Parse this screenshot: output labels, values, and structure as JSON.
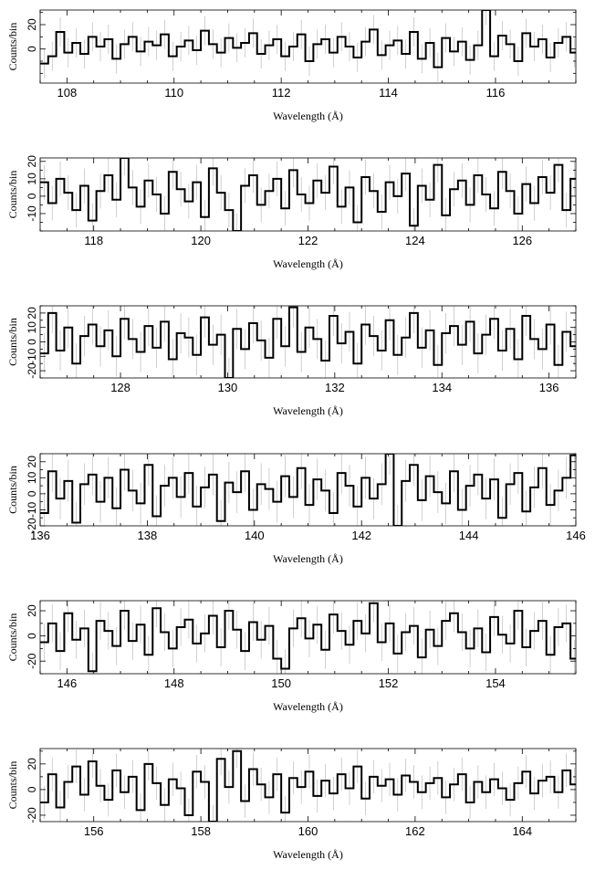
{
  "chart_data": [
    {
      "type": "line",
      "xlabel": "Wavelength (Å)",
      "ylabel": "Counts/bin",
      "xlim": [
        107.5,
        117.5
      ],
      "ylim": [
        -28,
        32
      ],
      "xticks": [
        108,
        110,
        112,
        114,
        116
      ],
      "yticks": [
        0,
        20
      ],
      "x": [
        107.5,
        107.65,
        107.8,
        107.95,
        108.1,
        108.25,
        108.4,
        108.55,
        108.7,
        108.85,
        109.0,
        109.15,
        109.3,
        109.45,
        109.6,
        109.75,
        109.9,
        110.05,
        110.2,
        110.35,
        110.5,
        110.65,
        110.8,
        110.95,
        111.1,
        111.25,
        111.4,
        111.55,
        111.7,
        111.85,
        112.0,
        112.15,
        112.3,
        112.45,
        112.6,
        112.75,
        112.9,
        113.05,
        113.2,
        113.35,
        113.5,
        113.65,
        113.8,
        113.95,
        114.1,
        114.25,
        114.4,
        114.55,
        114.7,
        114.85,
        115.0,
        115.15,
        115.3,
        115.45,
        115.6,
        115.75,
        115.9,
        116.05,
        116.2,
        116.35,
        116.5,
        116.65,
        116.8,
        116.95,
        117.1,
        117.25,
        117.4
      ],
      "y": [
        -12,
        -6,
        14,
        -3,
        5,
        -4,
        10,
        2,
        8,
        -8,
        4,
        10,
        -2,
        6,
        3,
        12,
        -6,
        2,
        7,
        -1,
        15,
        4,
        -3,
        9,
        1,
        5,
        13,
        -4,
        3,
        8,
        -6,
        2,
        12,
        -10,
        4,
        8,
        -3,
        10,
        2,
        -7,
        6,
        16,
        -5,
        3,
        7,
        -4,
        14,
        -8,
        5,
        -15,
        9,
        -2,
        6,
        -9,
        3,
        32,
        -6,
        11,
        4,
        -10,
        13,
        2,
        8,
        -7,
        5,
        10,
        -3
      ],
      "err": 12
    },
    {
      "type": "line",
      "xlabel": "Wavelength (Å)",
      "ylabel": "Counts/bin",
      "xlim": [
        117.0,
        127.0
      ],
      "ylim": [
        -20,
        22
      ],
      "xticks": [
        118,
        120,
        122,
        124,
        126
      ],
      "yticks": [
        -10,
        0,
        10,
        20
      ],
      "x": [
        117.0,
        117.15,
        117.3,
        117.45,
        117.6,
        117.75,
        117.9,
        118.05,
        118.2,
        118.35,
        118.5,
        118.65,
        118.8,
        118.95,
        119.1,
        119.25,
        119.4,
        119.55,
        119.7,
        119.85,
        120.0,
        120.15,
        120.3,
        120.45,
        120.6,
        120.75,
        120.9,
        121.05,
        121.2,
        121.35,
        121.5,
        121.65,
        121.8,
        121.95,
        122.1,
        122.25,
        122.4,
        122.55,
        122.7,
        122.85,
        123.0,
        123.15,
        123.3,
        123.45,
        123.6,
        123.75,
        123.9,
        124.05,
        124.2,
        124.35,
        124.5,
        124.65,
        124.8,
        124.95,
        125.1,
        125.25,
        125.4,
        125.55,
        125.7,
        125.85,
        126.0,
        126.15,
        126.3,
        126.45,
        126.6,
        126.75,
        126.9
      ],
      "y": [
        8,
        -4,
        10,
        2,
        -8,
        6,
        -14,
        3,
        12,
        -2,
        22,
        5,
        -6,
        9,
        1,
        -10,
        14,
        4,
        -3,
        8,
        -12,
        16,
        2,
        -8,
        -20,
        6,
        12,
        -5,
        3,
        10,
        -7,
        15,
        1,
        -4,
        9,
        2,
        17,
        -6,
        5,
        -15,
        11,
        3,
        -9,
        8,
        0,
        13,
        -17,
        6,
        -2,
        18,
        -11,
        4,
        9,
        -5,
        12,
        1,
        -7,
        14,
        3,
        -10,
        7,
        -4,
        11,
        2,
        18,
        -8,
        10
      ],
      "err": 10
    },
    {
      "type": "line",
      "xlabel": "Wavelength (Å)",
      "ylabel": "Counts/bin",
      "xlim": [
        126.5,
        136.5
      ],
      "ylim": [
        -25,
        25
      ],
      "xticks": [
        128,
        130,
        132,
        134,
        136
      ],
      "yticks": [
        -20,
        -10,
        0,
        10,
        20
      ],
      "x": [
        126.5,
        126.65,
        126.8,
        126.95,
        127.1,
        127.25,
        127.4,
        127.55,
        127.7,
        127.85,
        128.0,
        128.15,
        128.3,
        128.45,
        128.6,
        128.75,
        128.9,
        129.05,
        129.2,
        129.35,
        129.5,
        129.65,
        129.8,
        129.95,
        130.1,
        130.25,
        130.4,
        130.55,
        130.7,
        130.85,
        131.0,
        131.15,
        131.3,
        131.45,
        131.6,
        131.75,
        131.9,
        132.05,
        132.2,
        132.35,
        132.5,
        132.65,
        132.8,
        132.95,
        133.1,
        133.25,
        133.4,
        133.55,
        133.7,
        133.85,
        134.0,
        134.15,
        134.3,
        134.45,
        134.6,
        134.75,
        134.9,
        135.05,
        135.2,
        135.35,
        135.5,
        135.65,
        135.8,
        135.95,
        136.1,
        136.25,
        136.4
      ],
      "y": [
        -8,
        20,
        -6,
        10,
        -15,
        4,
        12,
        -3,
        8,
        -10,
        16,
        2,
        -7,
        11,
        -4,
        14,
        -12,
        6,
        3,
        -9,
        17,
        -2,
        5,
        -25,
        9,
        -5,
        13,
        1,
        -11,
        16,
        -3,
        24,
        -7,
        10,
        2,
        -13,
        18,
        -1,
        7,
        -15,
        12,
        4,
        -6,
        15,
        -9,
        3,
        20,
        -4,
        8,
        -16,
        6,
        11,
        -2,
        14,
        -8,
        5,
        16,
        -6,
        9,
        -12,
        18,
        2,
        -5,
        12,
        -16,
        7,
        -3
      ],
      "err": 14
    },
    {
      "type": "line",
      "xlabel": "Wavelength (Å)",
      "ylabel": "Counts/bin",
      "xlim": [
        136,
        146
      ],
      "ylim": [
        -20,
        25
      ],
      "xticks": [
        136,
        138,
        140,
        142,
        144,
        146
      ],
      "yticks": [
        -20,
        -10,
        0,
        10,
        20
      ],
      "x": [
        136.0,
        136.15,
        136.3,
        136.45,
        136.6,
        136.75,
        136.9,
        137.05,
        137.2,
        137.35,
        137.5,
        137.65,
        137.8,
        137.95,
        138.1,
        138.25,
        138.4,
        138.55,
        138.7,
        138.85,
        139.0,
        139.15,
        139.3,
        139.45,
        139.6,
        139.75,
        139.9,
        140.05,
        140.2,
        140.35,
        140.5,
        140.65,
        140.8,
        140.95,
        141.1,
        141.25,
        141.4,
        141.55,
        141.7,
        141.85,
        142.0,
        142.15,
        142.3,
        142.45,
        142.6,
        142.75,
        142.9,
        143.05,
        143.2,
        143.35,
        143.5,
        143.65,
        143.8,
        143.95,
        144.1,
        144.25,
        144.4,
        144.55,
        144.7,
        144.85,
        145.0,
        145.15,
        145.3,
        145.45,
        145.6,
        145.75,
        145.9
      ],
      "y": [
        -12,
        14,
        -3,
        8,
        -18,
        6,
        12,
        -5,
        10,
        -9,
        15,
        2,
        -6,
        18,
        -14,
        5,
        10,
        -2,
        13,
        -8,
        4,
        12,
        -17,
        7,
        1,
        14,
        -10,
        6,
        3,
        -5,
        11,
        -2,
        16,
        -7,
        9,
        2,
        -12,
        13,
        5,
        -8,
        10,
        -3,
        6,
        25,
        -20,
        8,
        18,
        -4,
        11,
        1,
        -6,
        14,
        -10,
        5,
        12,
        -3,
        9,
        -15,
        6,
        13,
        -11,
        4,
        16,
        -7,
        2,
        10,
        24
      ],
      "err": 13
    },
    {
      "type": "line",
      "xlabel": "Wavelength (Å)",
      "ylabel": "Counts/bin",
      "xlim": [
        145.5,
        155.5
      ],
      "ylim": [
        -30,
        28
      ],
      "xticks": [
        146,
        148,
        150,
        152,
        154
      ],
      "yticks": [
        -20,
        0,
        20
      ],
      "x": [
        145.5,
        145.65,
        145.8,
        145.95,
        146.1,
        146.25,
        146.4,
        146.55,
        146.7,
        146.85,
        147.0,
        147.15,
        147.3,
        147.45,
        147.6,
        147.75,
        147.9,
        148.05,
        148.2,
        148.35,
        148.5,
        148.65,
        148.8,
        148.95,
        149.1,
        149.25,
        149.4,
        149.55,
        149.7,
        149.85,
        150.0,
        150.15,
        150.3,
        150.45,
        150.6,
        150.75,
        150.9,
        151.05,
        151.2,
        151.35,
        151.5,
        151.65,
        151.8,
        151.95,
        152.1,
        152.25,
        152.4,
        152.55,
        152.7,
        152.85,
        153.0,
        153.15,
        153.3,
        153.45,
        153.6,
        153.75,
        153.9,
        154.05,
        154.2,
        154.35,
        154.5,
        154.65,
        154.8,
        154.95,
        155.1,
        155.25,
        155.4
      ],
      "y": [
        -5,
        10,
        -12,
        18,
        -3,
        6,
        -28,
        12,
        4,
        -8,
        20,
        -4,
        9,
        -15,
        22,
        3,
        -10,
        7,
        13,
        -6,
        2,
        16,
        -9,
        20,
        5,
        -12,
        11,
        -3,
        8,
        -18,
        -26,
        6,
        14,
        -2,
        9,
        -11,
        17,
        4,
        -7,
        12,
        2,
        26,
        -5,
        10,
        -14,
        3,
        8,
        -17,
        5,
        -8,
        12,
        18,
        3,
        -10,
        6,
        -13,
        15,
        1,
        -6,
        20,
        -9,
        4,
        12,
        -15,
        7,
        10,
        -18
      ],
      "err": 15
    },
    {
      "type": "line",
      "xlabel": "Wavelength (Å)",
      "ylabel": "Counts/bin",
      "xlim": [
        155,
        165
      ],
      "ylim": [
        -25,
        32
      ],
      "xticks": [
        156,
        158,
        160,
        162,
        164
      ],
      "yticks": [
        -20,
        0,
        20
      ],
      "x": [
        155.0,
        155.15,
        155.3,
        155.45,
        155.6,
        155.75,
        155.9,
        156.05,
        156.2,
        156.35,
        156.5,
        156.65,
        156.8,
        156.95,
        157.1,
        157.25,
        157.4,
        157.55,
        157.7,
        157.85,
        158.0,
        158.15,
        158.3,
        158.45,
        158.6,
        158.75,
        158.9,
        159.05,
        159.2,
        159.35,
        159.5,
        159.65,
        159.8,
        159.95,
        160.1,
        160.25,
        160.4,
        160.55,
        160.7,
        160.85,
        161.0,
        161.15,
        161.3,
        161.45,
        161.6,
        161.75,
        161.9,
        162.05,
        162.2,
        162.35,
        162.5,
        162.65,
        162.8,
        162.95,
        163.1,
        163.25,
        163.4,
        163.55,
        163.7,
        163.85,
        164.0,
        164.15,
        164.3,
        164.45,
        164.6,
        164.75,
        164.9
      ],
      "y": [
        -10,
        12,
        -14,
        6,
        18,
        -4,
        22,
        3,
        -8,
        15,
        -2,
        10,
        -16,
        20,
        5,
        -12,
        8,
        1,
        -20,
        14,
        6,
        -25,
        24,
        2,
        30,
        -9,
        16,
        4,
        -6,
        12,
        -18,
        9,
        2,
        14,
        -5,
        7,
        -3,
        12,
        1,
        18,
        -7,
        10,
        3,
        8,
        -4,
        11,
        6,
        -2,
        5,
        9,
        -6,
        4,
        12,
        -10,
        6,
        -2,
        8,
        1,
        -8,
        5,
        14,
        -3,
        7,
        10,
        -2,
        15,
        4
      ],
      "err": 13
    }
  ]
}
